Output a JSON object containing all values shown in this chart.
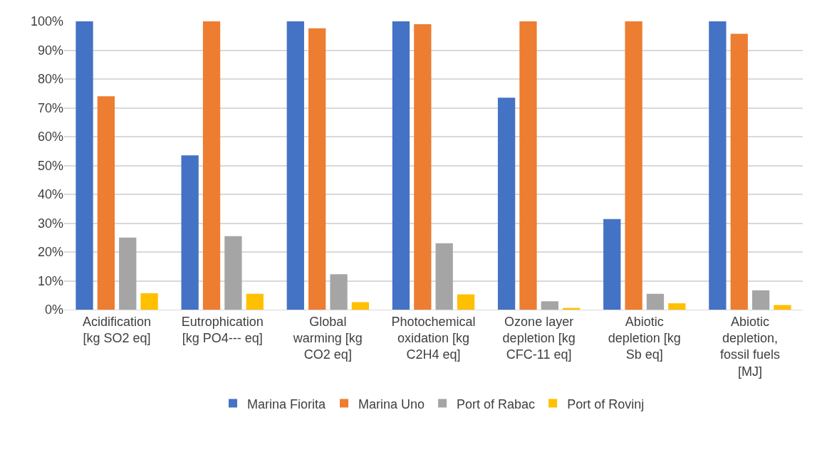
{
  "chart_data": {
    "type": "bar",
    "categories": [
      "Acidification\n[kg SO2 eq]",
      "Eutrophication\n[kg PO4--- eq]",
      "Global\nwarming [kg\nCO2 eq]",
      "Photochemical\noxidation [kg\nC2H4 eq]",
      "Ozone layer\ndepletion [kg\nCFC-11 eq]",
      "Abiotic\ndepletion [kg\nSb eq]",
      "Abiotic\ndepletion,\nfossil fuels\n[MJ]"
    ],
    "series": [
      {
        "name": "Marina Fiorita",
        "color": "#4472c4",
        "values": [
          100,
          53.5,
          100,
          100,
          73.5,
          31.4,
          100
        ]
      },
      {
        "name": "Marina Uno",
        "color": "#ed7d31",
        "values": [
          74,
          100,
          97.6,
          99,
          100,
          100,
          95.7
        ]
      },
      {
        "name": "Port of Rabac",
        "color": "#a5a5a5",
        "values": [
          25,
          25.5,
          12.3,
          23,
          2.9,
          5.5,
          6.7
        ]
      },
      {
        "name": "Port of Rovinj",
        "color": "#ffc000",
        "values": [
          5.7,
          5.5,
          2.6,
          5.3,
          0.6,
          2.2,
          1.6
        ]
      }
    ],
    "ylim": [
      0,
      100
    ],
    "yticks": [
      {
        "value": 0,
        "label": "0%"
      },
      {
        "value": 10,
        "label": "10%"
      },
      {
        "value": 20,
        "label": "20%"
      },
      {
        "value": 30,
        "label": "30%"
      },
      {
        "value": 40,
        "label": "40%"
      },
      {
        "value": 50,
        "label": "50%"
      },
      {
        "value": 60,
        "label": "60%"
      },
      {
        "value": 70,
        "label": "70%"
      },
      {
        "value": 80,
        "label": "80%"
      },
      {
        "value": 90,
        "label": "90%"
      },
      {
        "value": 100,
        "label": "100%"
      }
    ],
    "grid": "y",
    "legend": "bottom"
  }
}
